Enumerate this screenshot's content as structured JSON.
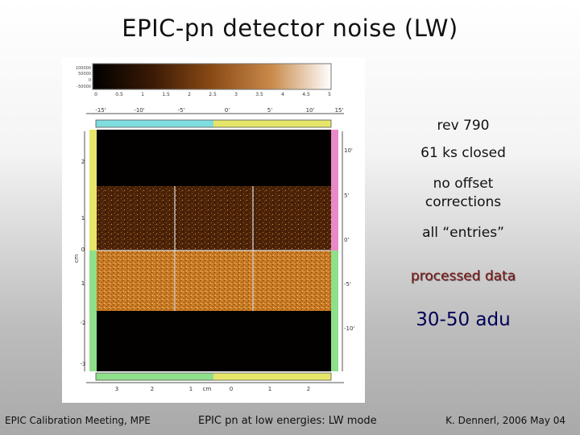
{
  "slide": {
    "title": "EPIC-pn detector noise  (LW)"
  },
  "annotations": {
    "rev": "rev 790",
    "exposure": "61 ks closed",
    "offset_line1": "no offset",
    "offset_line2": "corrections",
    "entries": "all “entries”",
    "processed": "processed data",
    "range": "30-50 adu"
  },
  "figure": {
    "colorbar_labels": [
      "100000",
      "50000",
      "0",
      "-50000"
    ],
    "colorbar_ticks": [
      "0",
      "0.5",
      "1",
      "1.5",
      "2",
      "2.5",
      "3",
      "3.5",
      "4",
      "4.5",
      "5"
    ],
    "top_arcmin_ticks": [
      "-15'",
      "-10'",
      "-5'",
      "0'",
      "5'",
      "10'",
      "15'"
    ],
    "right_arcmin_ticks": [
      "10'",
      "5'",
      "0'",
      "-5'",
      "-10'"
    ],
    "left_cm_ticks": [
      "2",
      "1",
      "0",
      "1",
      "-2",
      "-3"
    ],
    "bottom_cm_ticks": [
      "3",
      "2",
      "1",
      "cm",
      "0",
      "1",
      "2"
    ],
    "unit_label": "cm"
  },
  "footer": {
    "left": "EPIC Calibration Meeting, MPE",
    "center": "EPIC pn at low energies: LW mode",
    "right": "K. Dennerl, 2006 May 04"
  }
}
